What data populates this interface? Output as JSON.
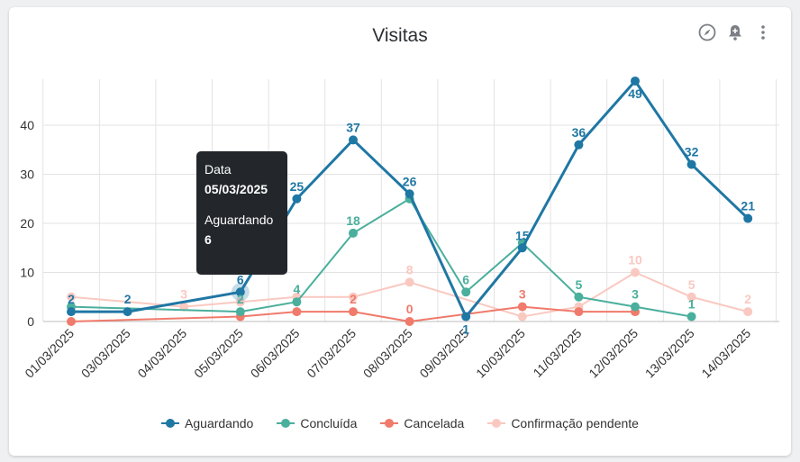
{
  "card": {
    "title": "Visitas",
    "toolbar_icons": [
      "compass-icon",
      "bell-plus-icon",
      "more-vert-icon"
    ]
  },
  "tooltip": {
    "label1": "Data",
    "value1": "05/03/2025",
    "label2": "Aguardando",
    "value2": "6"
  },
  "chart_data": {
    "type": "line",
    "title": "Visitas",
    "categories": [
      "01/03/2025",
      "03/03/2025",
      "04/03/2025",
      "05/03/2025",
      "06/03/2025",
      "07/03/2025",
      "08/03/2025",
      "09/03/2025",
      "10/03/2025",
      "11/03/2025",
      "12/03/2025",
      "13/03/2025",
      "14/03/2025"
    ],
    "ylim": [
      0,
      49
    ],
    "yticks": [
      0,
      10,
      20,
      30,
      40
    ],
    "grid": true,
    "legend_position": "bottom",
    "series": [
      {
        "name": "Aguardando",
        "color": "#1f77a4",
        "values": [
          2,
          2,
          null,
          6,
          25,
          37,
          26,
          1,
          15,
          36,
          49,
          32,
          21
        ],
        "labels": [
          "2",
          "2",
          "",
          "6",
          "25",
          "37",
          "26",
          "1",
          "15",
          "36",
          "49",
          "32",
          "21"
        ]
      },
      {
        "name": "Concluída",
        "color": "#4aaf9c",
        "values": [
          3,
          null,
          null,
          2,
          4,
          18,
          25,
          6,
          16,
          5,
          3,
          1,
          null
        ],
        "labels": [
          "",
          "",
          "",
          "2",
          "4",
          "18",
          "",
          "6",
          "",
          "5",
          "3",
          "1",
          ""
        ]
      },
      {
        "name": "Cancelada",
        "color": "#f07a6b",
        "values": [
          0,
          null,
          null,
          1,
          2,
          2,
          0,
          null,
          3,
          2,
          2,
          null,
          null
        ],
        "labels": [
          "",
          "",
          "",
          "",
          "",
          "2",
          "0",
          "",
          "3",
          "",
          "",
          "",
          ""
        ]
      },
      {
        "name": "Confirmação pendente",
        "color": "#f9c9c1",
        "values": [
          5,
          null,
          3,
          4,
          5,
          5,
          8,
          null,
          1,
          3,
          10,
          5,
          2
        ],
        "labels": [
          "",
          "",
          "3",
          "",
          "",
          "",
          "8",
          "",
          "",
          "",
          "10",
          "5",
          "2"
        ]
      }
    ]
  }
}
